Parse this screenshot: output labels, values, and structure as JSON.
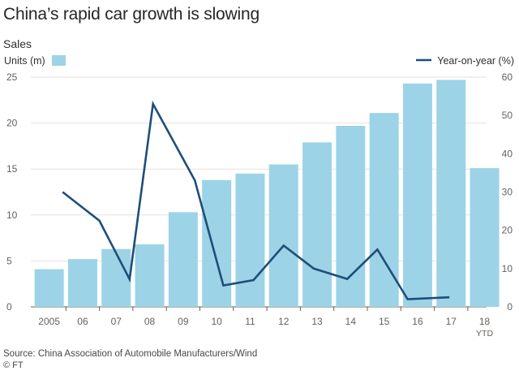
{
  "chart_data": {
    "type": "bar",
    "title": "China’s rapid car growth is slowing",
    "subtitle": "Sales",
    "source": "Source: China Association of Automobile Manufacturers/Wind",
    "credit": "© FT",
    "categories": [
      "2005",
      "06",
      "07",
      "08",
      "09",
      "10",
      "11",
      "12",
      "13",
      "14",
      "15",
      "16",
      "17",
      "18"
    ],
    "category_sublabels": [
      "",
      "",
      "",
      "",
      "",
      "",
      "",
      "",
      "",
      "",
      "",
      "",
      "",
      "YTD"
    ],
    "series": [
      {
        "name": "Units (m)",
        "type": "bar",
        "axis": "left",
        "color": "#9dd3e6",
        "values": [
          4.1,
          5.2,
          6.3,
          6.8,
          10.3,
          13.8,
          14.5,
          15.5,
          17.9,
          19.7,
          21.1,
          24.3,
          24.7,
          15.1
        ]
      },
      {
        "name": "Year-on-year (%)",
        "type": "line",
        "axis": "right",
        "color": "#1f4e79",
        "x": [
          0.9,
          2,
          2.9,
          3.6,
          4.85,
          5.7,
          6.6,
          7.5,
          8.4,
          9.4,
          10.3,
          11.2,
          12.45
        ],
        "values": [
          30,
          22.5,
          7.2,
          53,
          33,
          5.6,
          7,
          16,
          10,
          7.3,
          15,
          2,
          2.5
        ]
      }
    ],
    "y_left": {
      "label": "Units (m)",
      "min": 0,
      "max": 25,
      "ticks": [
        0,
        5,
        10,
        15,
        20,
        25
      ]
    },
    "y_right": {
      "label": "Year-on-year (%)",
      "min": 0,
      "max": 60,
      "ticks": [
        0,
        10,
        20,
        30,
        40,
        50,
        60
      ]
    },
    "grid": true,
    "legend": "top"
  }
}
